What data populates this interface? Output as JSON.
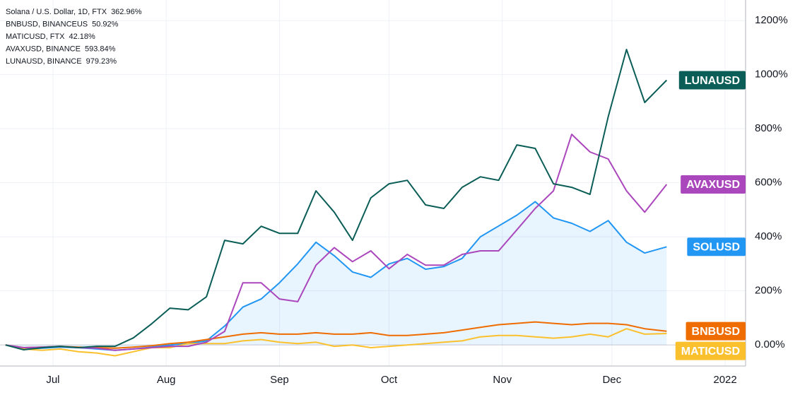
{
  "chart_data": {
    "type": "line",
    "x": [
      -13,
      -8,
      -3,
      2,
      7,
      12,
      17,
      22,
      27,
      32,
      37,
      42,
      47,
      52,
      57,
      62,
      67,
      72,
      77,
      82,
      87,
      92,
      97,
      102,
      107,
      112,
      117,
      122,
      127,
      132,
      137,
      142,
      147,
      152,
      157,
      162,
      168
    ],
    "xlim": [
      -14.5,
      189.6
    ],
    "xticks": [
      {
        "value": 0,
        "label": "Jul"
      },
      {
        "value": 31,
        "label": "Aug"
      },
      {
        "value": 62,
        "label": "Sep"
      },
      {
        "value": 92,
        "label": "Oct"
      },
      {
        "value": 123,
        "label": "Nov"
      },
      {
        "value": 153,
        "label": "Dec"
      },
      {
        "value": 184,
        "label": "2022"
      }
    ],
    "ylim": [
      -78,
      1276
    ],
    "yticks": [
      {
        "value": 0,
        "label": "0.00%"
      },
      {
        "value": 200,
        "label": "200%"
      },
      {
        "value": 400,
        "label": "400%"
      },
      {
        "value": 600,
        "label": "600%"
      },
      {
        "value": 800,
        "label": "800%"
      },
      {
        "value": 1000,
        "label": "1000%"
      },
      {
        "value": 1200,
        "label": "1200%"
      }
    ],
    "grid": true,
    "series": [
      {
        "name": "Solana / U.S. Dollar, 1D, FTX",
        "label": "SOLUSD",
        "color": "#2196f3",
        "area": true,
        "values": [
          0,
          -15,
          -12,
          -8,
          -10,
          -15,
          -20,
          -15,
          -8,
          0,
          5,
          15,
          70,
          140,
          170,
          230,
          300,
          380,
          330,
          270,
          250,
          300,
          320,
          280,
          290,
          320,
          400,
          440,
          480,
          530,
          470,
          450,
          420,
          460,
          380,
          340,
          362.96
        ],
        "value_labels": [
          null,
          null,
          null,
          null,
          null,
          null,
          null,
          null,
          null,
          null,
          null,
          null,
          null,
          null,
          null,
          null,
          null,
          null,
          null,
          null,
          null,
          null,
          null,
          null,
          null,
          null,
          null,
          null,
          null,
          null,
          null,
          null,
          null,
          null,
          null,
          null,
          "362.96%"
        ]
      },
      {
        "name": "BNBUSD, BINANCEUS",
        "label": "BNBUSD",
        "color": "#ef6c00",
        "values": [
          0,
          -10,
          -8,
          -5,
          -8,
          -10,
          -12,
          -8,
          -3,
          5,
          10,
          20,
          30,
          40,
          45,
          40,
          40,
          45,
          40,
          40,
          45,
          35,
          35,
          40,
          45,
          55,
          65,
          75,
          80,
          85,
          80,
          75,
          80,
          80,
          75,
          60,
          50.92
        ],
        "value_labels": [
          null,
          null,
          null,
          null,
          null,
          null,
          null,
          null,
          null,
          null,
          null,
          null,
          null,
          null,
          null,
          null,
          null,
          null,
          null,
          null,
          null,
          null,
          null,
          null,
          null,
          null,
          null,
          null,
          null,
          null,
          null,
          null,
          null,
          null,
          null,
          null,
          "50.92%"
        ]
      },
      {
        "name": "MATICUSD, FTX",
        "label": "MATICUSD",
        "color": "#fbc02d",
        "values": [
          0,
          -15,
          -20,
          -15,
          -25,
          -30,
          -40,
          -25,
          -10,
          -10,
          5,
          5,
          5,
          15,
          20,
          10,
          5,
          10,
          -5,
          0,
          -10,
          -5,
          0,
          5,
          10,
          15,
          30,
          35,
          35,
          30,
          25,
          30,
          40,
          30,
          60,
          40,
          42.18
        ],
        "value_labels": [
          null,
          null,
          null,
          null,
          null,
          null,
          null,
          null,
          null,
          null,
          null,
          null,
          null,
          null,
          null,
          null,
          null,
          null,
          null,
          null,
          null,
          null,
          null,
          null,
          null,
          null,
          null,
          null,
          null,
          null,
          null,
          null,
          null,
          null,
          null,
          null,
          "42.18%"
        ]
      },
      {
        "name": "AVAXUSD, BINANCE",
        "label": "AVAXUSD",
        "color": "#ab47bc",
        "values": [
          0,
          -10,
          -8,
          -5,
          -10,
          -12,
          -20,
          -15,
          -10,
          -5,
          -5,
          10,
          50,
          230,
          230,
          170,
          160,
          295,
          360,
          308,
          348,
          282,
          335,
          295,
          295,
          335,
          348,
          348,
          426,
          505,
          570,
          779,
          714,
          688,
          570,
          491,
          593.84
        ],
        "value_labels": [
          null,
          null,
          null,
          null,
          null,
          null,
          null,
          null,
          null,
          null,
          null,
          null,
          null,
          null,
          null,
          null,
          null,
          null,
          null,
          null,
          null,
          null,
          null,
          null,
          null,
          null,
          null,
          null,
          null,
          null,
          null,
          null,
          null,
          null,
          null,
          null,
          "593.84%"
        ]
      },
      {
        "name": "LUNAUSD, BINANCE",
        "label": "LUNAUSD",
        "color": "#0b5e57",
        "values": [
          0,
          -18,
          -10,
          -5,
          -10,
          -5,
          -5,
          26,
          78,
          136,
          130,
          178,
          387,
          374,
          439,
          413,
          413,
          570,
          491,
          387,
          544,
          596,
          609,
          518,
          505,
          583,
          622,
          609,
          740,
          727,
          596,
          583,
          557,
          844,
          1093,
          897,
          979.23
        ],
        "value_labels": [
          null,
          null,
          null,
          null,
          null,
          null,
          null,
          null,
          null,
          null,
          null,
          null,
          null,
          null,
          null,
          null,
          null,
          null,
          null,
          null,
          null,
          null,
          null,
          null,
          null,
          null,
          null,
          null,
          null,
          null,
          null,
          null,
          null,
          null,
          null,
          null,
          "979.23%"
        ]
      }
    ]
  }
}
